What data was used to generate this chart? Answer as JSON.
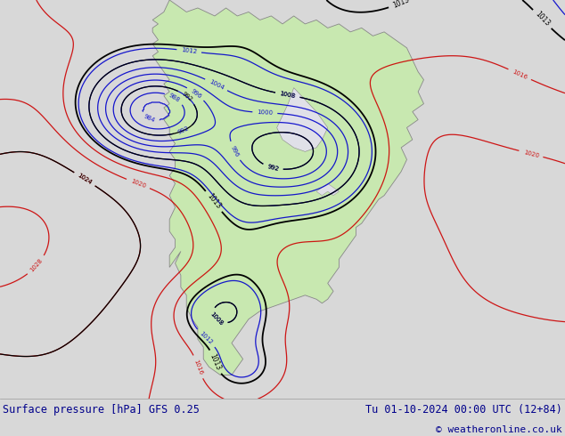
{
  "bottom_left": "Surface pressure [hPa] GFS 0.25",
  "bottom_right": "Tu 01-10-2024 00:00 UTC (12+84)",
  "copyright": "© weatheronline.co.uk",
  "bg_color": "#d8d8d8",
  "ocean_color": "#e0e0e8",
  "land_color": "#c8e8b0",
  "land_edge_color": "#888888",
  "figsize": [
    6.34,
    4.9
  ],
  "dpi": 100,
  "bottom_text_color": "#00008B",
  "contour_black": "#000000",
  "contour_red": "#cc0000",
  "contour_blue": "#0000cc"
}
